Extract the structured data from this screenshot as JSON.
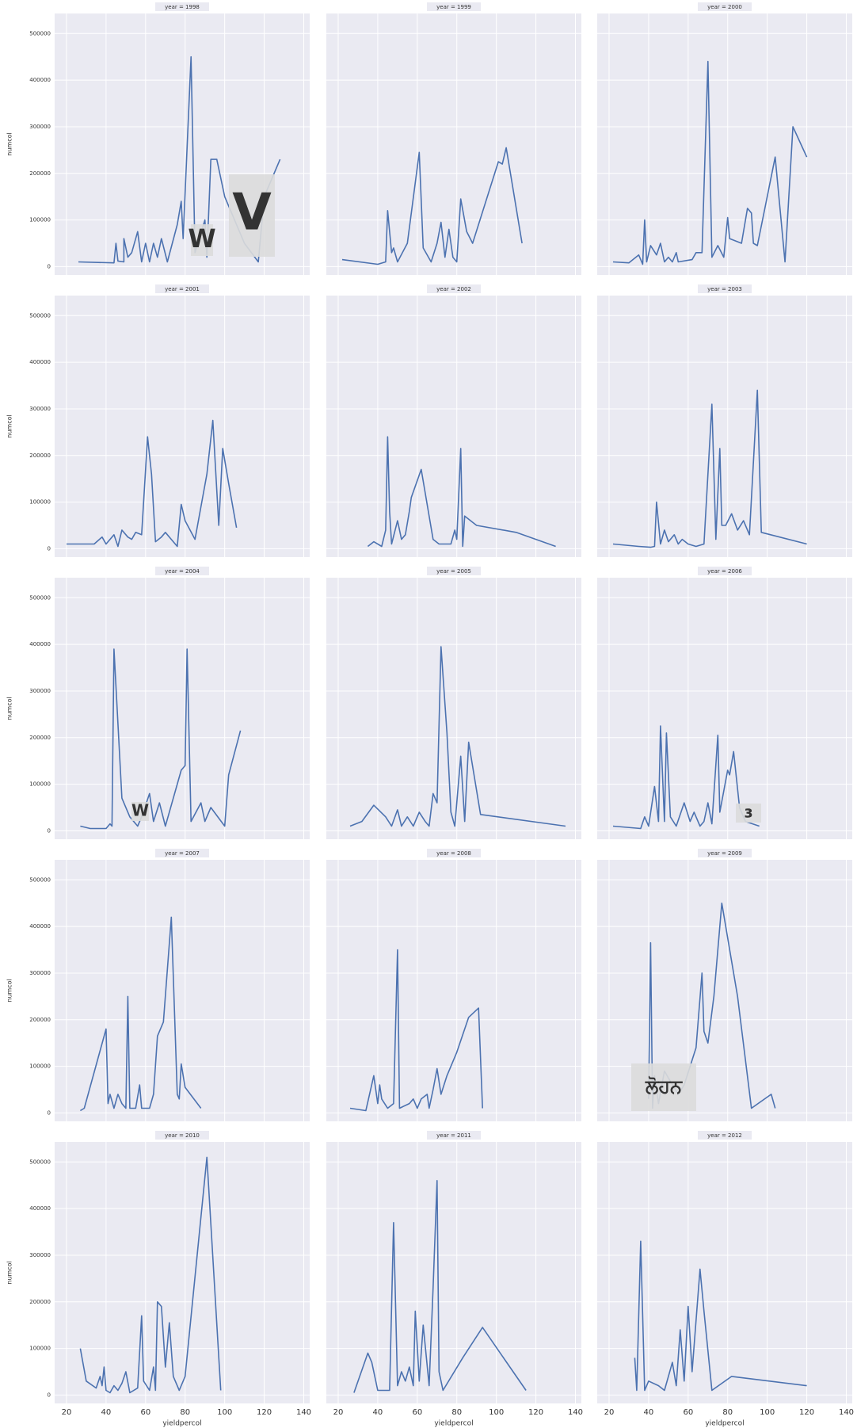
{
  "chart_data": [
    {
      "type": "line",
      "title": "year = 1998",
      "ylabel": "numcol",
      "color": "#4c72b0",
      "xlim": [
        14,
        143
      ],
      "ylim": [
        -18000,
        543000
      ],
      "xticks": [
        20,
        40,
        60,
        80,
        100,
        120,
        140
      ],
      "yticks": [
        0,
        100000,
        200000,
        300000,
        400000,
        500000
      ],
      "grid": true,
      "x": [
        26,
        44,
        45,
        46,
        49,
        49,
        51,
        53,
        56,
        58,
        60,
        62,
        64,
        66,
        68,
        71,
        76,
        78,
        79,
        83,
        85,
        90,
        91,
        93,
        96,
        100,
        110,
        117,
        120,
        128
      ],
      "values": [
        10000,
        8000,
        50000,
        12000,
        10000,
        60000,
        20000,
        30000,
        75000,
        10000,
        50000,
        10000,
        50000,
        20000,
        60000,
        10000,
        90000,
        140000,
        60000,
        450000,
        30000,
        100000,
        20000,
        230000,
        230000,
        150000,
        50000,
        10000,
        150000,
        230000
      ]
    },
    {
      "type": "line",
      "title": "year = 1999",
      "color": "#4c72b0",
      "xlim": [
        14,
        143
      ],
      "ylim": [
        -18000,
        543000
      ],
      "xticks": [
        20,
        40,
        60,
        80,
        100,
        120,
        140
      ],
      "yticks": [
        0,
        100000,
        200000,
        300000,
        400000,
        500000
      ],
      "grid": true,
      "x": [
        22,
        40,
        44,
        45,
        47,
        48,
        50,
        55,
        61,
        63,
        67,
        70,
        72,
        74,
        76,
        78,
        80,
        82,
        85,
        88,
        101,
        103,
        105,
        113
      ],
      "values": [
        15000,
        5000,
        10000,
        120000,
        30000,
        40000,
        10000,
        50000,
        245000,
        40000,
        10000,
        50000,
        95000,
        20000,
        80000,
        20000,
        10000,
        145000,
        75000,
        50000,
        225000,
        220000,
        255000,
        50000
      ]
    },
    {
      "type": "line",
      "title": "year = 2000",
      "color": "#4c72b0",
      "xlim": [
        14,
        143
      ],
      "ylim": [
        -18000,
        543000
      ],
      "xticks": [
        20,
        40,
        60,
        80,
        100,
        120,
        140
      ],
      "yticks": [
        0,
        100000,
        200000,
        300000,
        400000,
        500000
      ],
      "grid": true,
      "x": [
        22,
        30,
        35,
        37,
        38,
        39,
        41,
        44,
        46,
        48,
        50,
        52,
        54,
        55,
        62,
        64,
        67,
        70,
        72,
        75,
        78,
        80,
        81,
        87,
        90,
        92,
        93,
        95,
        104,
        109,
        113,
        120
      ],
      "values": [
        10000,
        8000,
        25000,
        5000,
        100000,
        10000,
        45000,
        25000,
        50000,
        10000,
        20000,
        10000,
        30000,
        10000,
        15000,
        30000,
        30000,
        440000,
        20000,
        45000,
        20000,
        105000,
        60000,
        50000,
        125000,
        115000,
        50000,
        45000,
        235000,
        10000,
        300000,
        235000
      ]
    },
    {
      "type": "line",
      "title": "year = 2001",
      "ylabel": "numcol",
      "color": "#4c72b0",
      "xlim": [
        14,
        143
      ],
      "ylim": [
        -18000,
        543000
      ],
      "xticks": [
        20,
        40,
        60,
        80,
        100,
        120,
        140
      ],
      "yticks": [
        0,
        100000,
        200000,
        300000,
        400000,
        500000
      ],
      "grid": true,
      "x": [
        20,
        34,
        38,
        40,
        44,
        46,
        48,
        51,
        53,
        55,
        58,
        61,
        63,
        65,
        68,
        70,
        74,
        76,
        78,
        80,
        85,
        91,
        94,
        97,
        99,
        102,
        106
      ],
      "values": [
        10000,
        10000,
        25000,
        10000,
        30000,
        5000,
        40000,
        25000,
        20000,
        35000,
        30000,
        240000,
        160000,
        15000,
        25000,
        35000,
        15000,
        5000,
        95000,
        60000,
        20000,
        160000,
        275000,
        50000,
        215000,
        140000,
        45000
      ]
    },
    {
      "type": "line",
      "title": "year = 2002",
      "color": "#4c72b0",
      "xlim": [
        14,
        143
      ],
      "ylim": [
        -18000,
        543000
      ],
      "xticks": [
        20,
        40,
        60,
        80,
        100,
        120,
        140
      ],
      "yticks": [
        0,
        100000,
        200000,
        300000,
        400000,
        500000
      ],
      "grid": true,
      "x": [
        35,
        38,
        42,
        44,
        45,
        46,
        47,
        50,
        52,
        54,
        56,
        57,
        62,
        66,
        68,
        71,
        77,
        79,
        80,
        82,
        83,
        84,
        90,
        110,
        130
      ],
      "values": [
        5000,
        15000,
        5000,
        40000,
        240000,
        80000,
        10000,
        60000,
        20000,
        30000,
        80000,
        110000,
        170000,
        70000,
        20000,
        10000,
        10000,
        40000,
        20000,
        215000,
        5000,
        70000,
        50000,
        35000,
        5000
      ]
    },
    {
      "type": "line",
      "title": "year = 2003",
      "color": "#4c72b0",
      "xlim": [
        14,
        143
      ],
      "ylim": [
        -18000,
        543000
      ],
      "xticks": [
        20,
        40,
        60,
        80,
        100,
        120,
        140
      ],
      "yticks": [
        0,
        100000,
        200000,
        300000,
        400000,
        500000
      ],
      "grid": true,
      "x": [
        22,
        35,
        41,
        43,
        44,
        46,
        48,
        50,
        53,
        55,
        57,
        60,
        64,
        68,
        72,
        74,
        76,
        77,
        79,
        82,
        85,
        88,
        91,
        95,
        97,
        120
      ],
      "values": [
        10000,
        5000,
        3000,
        5000,
        100000,
        10000,
        40000,
        15000,
        30000,
        10000,
        20000,
        10000,
        5000,
        10000,
        310000,
        20000,
        215000,
        50000,
        50000,
        75000,
        40000,
        60000,
        30000,
        340000,
        35000,
        10000
      ]
    },
    {
      "type": "line",
      "title": "year = 2004",
      "ylabel": "numcol",
      "color": "#4c72b0",
      "xlim": [
        14,
        143
      ],
      "ylim": [
        -18000,
        543000
      ],
      "xticks": [
        20,
        40,
        60,
        80,
        100,
        120,
        140
      ],
      "yticks": [
        0,
        100000,
        200000,
        300000,
        400000,
        500000
      ],
      "grid": true,
      "x": [
        27,
        32,
        40,
        42,
        43,
        44,
        48,
        52,
        56,
        58,
        62,
        64,
        67,
        70,
        78,
        80,
        81,
        83,
        88,
        90,
        93,
        100,
        102,
        108
      ],
      "values": [
        10000,
        5000,
        5000,
        15000,
        10000,
        390000,
        70000,
        30000,
        10000,
        30000,
        80000,
        20000,
        60000,
        10000,
        130000,
        140000,
        390000,
        20000,
        60000,
        20000,
        50000,
        10000,
        120000,
        215000
      ]
    },
    {
      "type": "line",
      "title": "year = 2005",
      "color": "#4c72b0",
      "xlim": [
        14,
        143
      ],
      "ylim": [
        -18000,
        543000
      ],
      "xticks": [
        20,
        40,
        60,
        80,
        100,
        120,
        140
      ],
      "yticks": [
        0,
        100000,
        200000,
        300000,
        400000,
        500000
      ],
      "grid": true,
      "x": [
        26,
        32,
        38,
        44,
        47,
        50,
        52,
        55,
        58,
        61,
        64,
        66,
        68,
        70,
        72,
        75,
        77,
        79,
        82,
        84,
        86,
        92,
        135
      ],
      "values": [
        10000,
        20000,
        55000,
        30000,
        10000,
        45000,
        10000,
        30000,
        10000,
        40000,
        20000,
        10000,
        80000,
        60000,
        395000,
        210000,
        40000,
        10000,
        160000,
        20000,
        190000,
        35000,
        10000
      ]
    },
    {
      "type": "line",
      "title": "year = 2006",
      "color": "#4c72b0",
      "xlim": [
        14,
        143
      ],
      "ylim": [
        -18000,
        543000
      ],
      "xticks": [
        20,
        40,
        60,
        80,
        100,
        120,
        140
      ],
      "yticks": [
        0,
        100000,
        200000,
        300000,
        400000,
        500000
      ],
      "grid": true,
      "x": [
        22,
        36,
        38,
        40,
        43,
        45,
        46,
        48,
        49,
        51,
        54,
        58,
        61,
        63,
        66,
        68,
        70,
        72,
        75,
        76,
        80,
        81,
        83,
        86,
        89,
        96
      ],
      "values": [
        10000,
        5000,
        30000,
        10000,
        95000,
        20000,
        225000,
        20000,
        210000,
        30000,
        10000,
        60000,
        20000,
        40000,
        10000,
        20000,
        60000,
        15000,
        205000,
        40000,
        130000,
        120000,
        170000,
        50000,
        20000,
        10000
      ]
    },
    {
      "type": "line",
      "title": "year = 2007",
      "ylabel": "numcol",
      "color": "#4c72b0",
      "xlim": [
        14,
        143
      ],
      "ylim": [
        -18000,
        543000
      ],
      "xticks": [
        20,
        40,
        60,
        80,
        100,
        120,
        140
      ],
      "yticks": [
        0,
        100000,
        200000,
        300000,
        400000,
        500000
      ],
      "grid": true,
      "x": [
        27,
        29,
        40,
        41,
        42,
        44,
        46,
        48,
        50,
        51,
        52,
        55,
        57,
        58,
        62,
        64,
        66,
        69,
        73,
        76,
        77,
        78,
        80,
        88
      ],
      "values": [
        5000,
        10000,
        180000,
        20000,
        40000,
        10000,
        40000,
        20000,
        10000,
        250000,
        10000,
        10000,
        60000,
        10000,
        10000,
        40000,
        165000,
        195000,
        420000,
        40000,
        30000,
        105000,
        55000,
        10000
      ]
    },
    {
      "type": "line",
      "title": "year = 2008",
      "color": "#4c72b0",
      "xlim": [
        14,
        143
      ],
      "ylim": [
        -18000,
        543000
      ],
      "xticks": [
        20,
        40,
        60,
        80,
        100,
        120,
        140
      ],
      "yticks": [
        0,
        100000,
        200000,
        300000,
        400000,
        500000
      ],
      "grid": true,
      "x": [
        26,
        34,
        38,
        40,
        41,
        42,
        45,
        48,
        50,
        51,
        56,
        58,
        60,
        62,
        65,
        66,
        68,
        70,
        72,
        75,
        80,
        86,
        91,
        93
      ],
      "values": [
        10000,
        5000,
        80000,
        20000,
        60000,
        30000,
        10000,
        20000,
        350000,
        10000,
        20000,
        30000,
        10000,
        30000,
        40000,
        10000,
        50000,
        95000,
        40000,
        80000,
        130000,
        205000,
        225000,
        10000
      ]
    },
    {
      "type": "line",
      "title": "year = 2009",
      "color": "#4c72b0",
      "xlim": [
        14,
        143
      ],
      "ylim": [
        -18000,
        543000
      ],
      "xticks": [
        20,
        40,
        60,
        80,
        100,
        120,
        140
      ],
      "yticks": [
        0,
        100000,
        200000,
        300000,
        400000,
        500000
      ],
      "grid": true,
      "x": [
        40,
        41,
        42,
        43,
        45,
        48,
        50,
        55,
        58,
        64,
        67,
        68,
        70,
        73,
        77,
        85,
        92,
        102,
        104
      ],
      "values": [
        30000,
        365000,
        10000,
        80000,
        20000,
        90000,
        75000,
        40000,
        60000,
        140000,
        300000,
        175000,
        150000,
        250000,
        450000,
        250000,
        10000,
        40000,
        10000
      ]
    },
    {
      "type": "line",
      "title": "year = 2010",
      "ylabel": "numcol",
      "xlabel": "yieldpercol",
      "color": "#4c72b0",
      "xlim": [
        14,
        143
      ],
      "ylim": [
        -18000,
        543000
      ],
      "xticks": [
        20,
        40,
        60,
        80,
        100,
        120,
        140
      ],
      "yticks": [
        0,
        100000,
        200000,
        300000,
        400000,
        500000
      ],
      "grid": true,
      "x": [
        27,
        30,
        35,
        37,
        38,
        39,
        40,
        42,
        44,
        46,
        48,
        50,
        52,
        56,
        58,
        59,
        62,
        64,
        65,
        66,
        68,
        70,
        72,
        74,
        77,
        80,
        91,
        98
      ],
      "values": [
        100000,
        30000,
        15000,
        40000,
        20000,
        60000,
        10000,
        5000,
        20000,
        10000,
        25000,
        50000,
        5000,
        15000,
        170000,
        30000,
        10000,
        60000,
        10000,
        200000,
        190000,
        60000,
        155000,
        40000,
        10000,
        40000,
        510000,
        10000
      ]
    },
    {
      "type": "line",
      "title": "year = 2011",
      "xlabel": "yieldpercol",
      "color": "#4c72b0",
      "xlim": [
        14,
        143
      ],
      "ylim": [
        -18000,
        543000
      ],
      "xticks": [
        20,
        40,
        60,
        80,
        100,
        120,
        140
      ],
      "yticks": [
        0,
        100000,
        200000,
        300000,
        400000,
        500000
      ],
      "grid": true,
      "x": [
        28,
        35,
        37,
        40,
        46,
        48,
        50,
        52,
        54,
        56,
        58,
        59,
        61,
        63,
        66,
        68,
        70,
        71,
        73,
        83,
        93,
        115
      ],
      "values": [
        5000,
        90000,
        70000,
        10000,
        10000,
        370000,
        20000,
        50000,
        30000,
        60000,
        20000,
        180000,
        30000,
        150000,
        20000,
        230000,
        460000,
        50000,
        10000,
        80000,
        145000,
        10000
      ]
    },
    {
      "type": "line",
      "title": "year = 2012",
      "xlabel": "yieldpercol",
      "color": "#4c72b0",
      "xlim": [
        14,
        143
      ],
      "ylim": [
        -18000,
        543000
      ],
      "xticks": [
        20,
        40,
        60,
        80,
        100,
        120,
        140
      ],
      "yticks": [
        0,
        100000,
        200000,
        300000,
        400000,
        500000
      ],
      "grid": true,
      "x": [
        33,
        34,
        36,
        38,
        40,
        45,
        48,
        50,
        52,
        54,
        56,
        58,
        60,
        62,
        66,
        68,
        72,
        82,
        120
      ],
      "values": [
        80000,
        10000,
        330000,
        10000,
        30000,
        20000,
        10000,
        40000,
        70000,
        20000,
        140000,
        30000,
        190000,
        50000,
        270000,
        180000,
        10000,
        40000,
        20000
      ]
    }
  ],
  "stickers": [
    "W",
    "V",
    "W",
    "ɜ",
    "ਲੋਹਨ"
  ]
}
